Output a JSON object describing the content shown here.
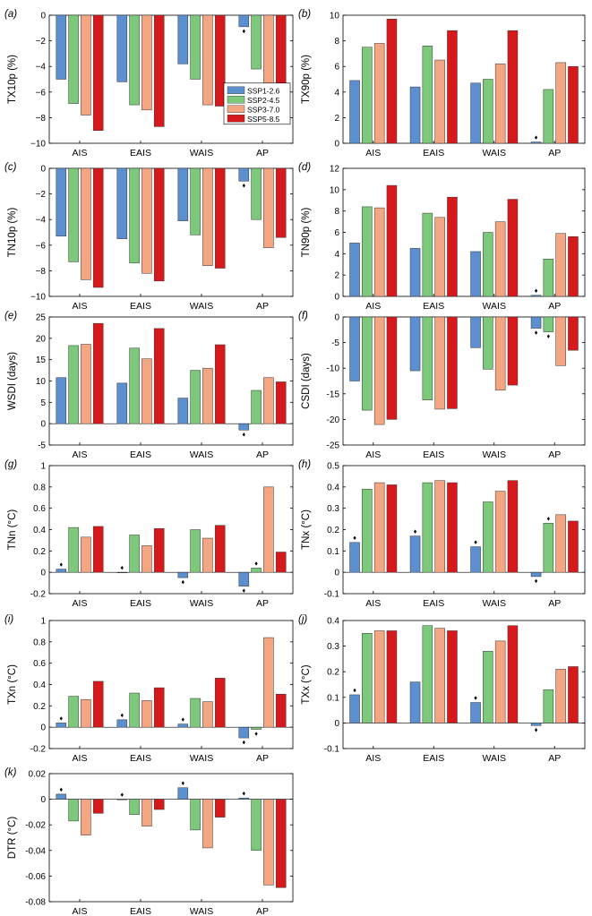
{
  "chart_data": [
    {
      "id": "a",
      "type": "bar",
      "panel_label": "(a)",
      "ylabel": "TX10p (%)",
      "ylim": [
        -10,
        0
      ],
      "yticks": [
        {
          "v": 0,
          "t": "0"
        },
        {
          "v": -2,
          "t": "−2"
        },
        {
          "v": -4,
          "t": "−4"
        },
        {
          "v": -6,
          "t": "−6"
        },
        {
          "v": -8,
          "t": "−8"
        },
        {
          "v": -10,
          "t": "−10"
        }
      ],
      "categories": [
        "AIS",
        "EAIS",
        "WAIS",
        "AP"
      ],
      "series": [
        {
          "name": "SSP1-2.6",
          "values": [
            -5.0,
            -5.2,
            -3.8,
            -0.9
          ]
        },
        {
          "name": "SSP2-4.5",
          "values": [
            -6.9,
            -7.0,
            -5.0,
            -4.2
          ]
        },
        {
          "name": "SSP3-7.0",
          "values": [
            -7.8,
            -7.4,
            -7.0,
            -6.1
          ]
        },
        {
          "name": "SSP5-8.5",
          "values": [
            -9.0,
            -8.7,
            -7.1,
            -5.6
          ]
        }
      ],
      "markers": [
        {
          "c": 3,
          "s": 0,
          "side": "below"
        }
      ],
      "legend": {
        "position": "lower-right",
        "entries": [
          "SSP1-2.6",
          "SSP2-4.5",
          "SSP3-7.0",
          "SSP5-8.5"
        ]
      }
    },
    {
      "id": "b",
      "type": "bar",
      "panel_label": "(b)",
      "ylabel": "TX90p (%)",
      "ylim": [
        0,
        10
      ],
      "yticks": [
        {
          "v": 0,
          "t": "0"
        },
        {
          "v": 2,
          "t": "2"
        },
        {
          "v": 4,
          "t": "4"
        },
        {
          "v": 6,
          "t": "6"
        },
        {
          "v": 8,
          "t": "8"
        },
        {
          "v": 10,
          "t": "10"
        }
      ],
      "categories": [
        "AIS",
        "EAIS",
        "WAIS",
        "AP"
      ],
      "series": [
        {
          "name": "SSP1-2.6",
          "values": [
            4.9,
            4.4,
            4.7,
            0.1
          ]
        },
        {
          "name": "SSP2-4.5",
          "values": [
            7.5,
            7.6,
            5.0,
            4.2
          ]
        },
        {
          "name": "SSP3-7.0",
          "values": [
            7.8,
            6.5,
            6.2,
            6.3
          ]
        },
        {
          "name": "SSP5-8.5",
          "values": [
            9.7,
            8.8,
            8.8,
            6.0
          ]
        }
      ],
      "markers": [
        {
          "c": 3,
          "s": 0,
          "side": "above"
        }
      ]
    },
    {
      "id": "c",
      "type": "bar",
      "panel_label": "(c)",
      "ylabel": "TN10p (%)",
      "ylim": [
        -10,
        0
      ],
      "yticks": [
        {
          "v": 0,
          "t": "0"
        },
        {
          "v": -2,
          "t": "−2"
        },
        {
          "v": -4,
          "t": "−4"
        },
        {
          "v": -6,
          "t": "−6"
        },
        {
          "v": -8,
          "t": "−8"
        },
        {
          "v": -10,
          "t": "−10"
        }
      ],
      "categories": [
        "AIS",
        "EAIS",
        "WAIS",
        "AP"
      ],
      "series": [
        {
          "name": "SSP1-2.6",
          "values": [
            -5.3,
            -5.5,
            -4.1,
            -1.0
          ]
        },
        {
          "name": "SSP2-4.5",
          "values": [
            -7.3,
            -7.4,
            -5.2,
            -4.0
          ]
        },
        {
          "name": "SSP3-7.0",
          "values": [
            -8.7,
            -8.2,
            -7.6,
            -6.2
          ]
        },
        {
          "name": "SSP5-8.5",
          "values": [
            -9.3,
            -8.8,
            -7.8,
            -5.4
          ]
        }
      ],
      "markers": [
        {
          "c": 3,
          "s": 0,
          "side": "below"
        }
      ]
    },
    {
      "id": "d",
      "type": "bar",
      "panel_label": "(d)",
      "ylabel": "TN90p (%)",
      "ylim": [
        0,
        12
      ],
      "yticks": [
        {
          "v": 0,
          "t": "0"
        },
        {
          "v": 2,
          "t": "2"
        },
        {
          "v": 4,
          "t": "4"
        },
        {
          "v": 6,
          "t": "6"
        },
        {
          "v": 8,
          "t": "8"
        },
        {
          "v": 10,
          "t": "10"
        },
        {
          "v": 12,
          "t": "12"
        }
      ],
      "categories": [
        "AIS",
        "EAIS",
        "WAIS",
        "AP"
      ],
      "series": [
        {
          "name": "SSP1-2.6",
          "values": [
            5.0,
            4.5,
            4.2,
            0.1
          ]
        },
        {
          "name": "SSP2-4.5",
          "values": [
            8.4,
            7.8,
            6.0,
            3.5
          ]
        },
        {
          "name": "SSP3-7.0",
          "values": [
            8.3,
            7.4,
            7.0,
            5.9
          ]
        },
        {
          "name": "SSP5-8.5",
          "values": [
            10.4,
            9.3,
            9.1,
            5.6
          ]
        }
      ],
      "markers": [
        {
          "c": 3,
          "s": 0,
          "side": "above"
        }
      ]
    },
    {
      "id": "e",
      "type": "bar",
      "panel_label": "(e)",
      "ylabel": "WSDI (days)",
      "ylim": [
        -5,
        25
      ],
      "yticks": [
        {
          "v": 25,
          "t": "25"
        },
        {
          "v": 20,
          "t": "20"
        },
        {
          "v": 15,
          "t": "15"
        },
        {
          "v": 10,
          "t": "10"
        },
        {
          "v": 5,
          "t": "5"
        },
        {
          "v": 0,
          "t": "0"
        },
        {
          "v": -5,
          "t": "-5"
        }
      ],
      "categories": [
        "AIS",
        "EAIS",
        "WAIS",
        "AP"
      ],
      "series": [
        {
          "name": "SSP1-2.6",
          "values": [
            10.8,
            9.5,
            6.0,
            -1.5
          ]
        },
        {
          "name": "SSP2-4.5",
          "values": [
            18.3,
            17.7,
            12.5,
            7.8
          ]
        },
        {
          "name": "SSP3-7.0",
          "values": [
            18.6,
            15.2,
            13.0,
            10.8
          ]
        },
        {
          "name": "SSP5-8.5",
          "values": [
            23.5,
            22.3,
            18.5,
            9.8
          ]
        }
      ],
      "markers": [
        {
          "c": 3,
          "s": 0,
          "side": "below"
        }
      ]
    },
    {
      "id": "f",
      "type": "bar",
      "panel_label": "(f)",
      "ylabel": "CSDI (days)",
      "ylim": [
        -25,
        0
      ],
      "yticks": [
        {
          "v": 0,
          "t": "0"
        },
        {
          "v": -5,
          "t": "-5"
        },
        {
          "v": -10,
          "t": "-10"
        },
        {
          "v": -15,
          "t": "-15"
        },
        {
          "v": -20,
          "t": "-20"
        },
        {
          "v": -25,
          "t": "-25"
        }
      ],
      "categories": [
        "AIS",
        "EAIS",
        "WAIS",
        "AP"
      ],
      "series": [
        {
          "name": "SSP1-2.6",
          "values": [
            -12.5,
            -10.5,
            -6.0,
            -2.2
          ]
        },
        {
          "name": "SSP2-4.5",
          "values": [
            -18.2,
            -16.2,
            -10.2,
            -2.9
          ]
        },
        {
          "name": "SSP3-7.0",
          "values": [
            -21.0,
            -18.0,
            -14.3,
            -9.5
          ]
        },
        {
          "name": "SSP5-8.5",
          "values": [
            -20.0,
            -17.9,
            -13.3,
            -6.5
          ]
        }
      ],
      "markers": [
        {
          "c": 3,
          "s": 0,
          "side": "below"
        },
        {
          "c": 3,
          "s": 1,
          "side": "below"
        }
      ]
    },
    {
      "id": "g",
      "type": "bar",
      "panel_label": "(g)",
      "ylabel": "TNn (°C)",
      "ylim": [
        -0.2,
        1
      ],
      "yticks": [
        {
          "v": 1,
          "t": "1"
        },
        {
          "v": 0.8,
          "t": "0.8"
        },
        {
          "v": 0.6,
          "t": "0.6"
        },
        {
          "v": 0.4,
          "t": "0.4"
        },
        {
          "v": 0.2,
          "t": "0.2"
        },
        {
          "v": 0,
          "t": "0"
        },
        {
          "v": -0.2,
          "t": "-0.2"
        }
      ],
      "categories": [
        "AIS",
        "EAIS",
        "WAIS",
        "AP"
      ],
      "series": [
        {
          "name": "SSP1-2.6",
          "values": [
            0.03,
            0.0,
            -0.05,
            -0.13
          ]
        },
        {
          "name": "SSP2-4.5",
          "values": [
            0.42,
            0.35,
            0.4,
            0.04
          ]
        },
        {
          "name": "SSP3-7.0",
          "values": [
            0.33,
            0.25,
            0.32,
            0.8
          ]
        },
        {
          "name": "SSP5-8.5",
          "values": [
            0.43,
            0.41,
            0.44,
            0.19
          ]
        }
      ],
      "markers": [
        {
          "c": 0,
          "s": 0,
          "side": "above"
        },
        {
          "c": 1,
          "s": 0,
          "side": "above"
        },
        {
          "c": 2,
          "s": 0,
          "side": "below"
        },
        {
          "c": 3,
          "s": 0,
          "side": "below"
        },
        {
          "c": 3,
          "s": 1,
          "side": "above"
        }
      ]
    },
    {
      "id": "h",
      "type": "bar",
      "panel_label": "(h)",
      "ylabel": "TNx (°C)",
      "ylim": [
        -0.1,
        0.5
      ],
      "yticks": [
        {
          "v": 0.5,
          "t": "0.5"
        },
        {
          "v": 0.4,
          "t": "0.4"
        },
        {
          "v": 0.3,
          "t": "0.3"
        },
        {
          "v": 0.2,
          "t": "0.2"
        },
        {
          "v": 0.1,
          "t": "0.1"
        },
        {
          "v": 0,
          "t": "0"
        },
        {
          "v": -0.1,
          "t": "-0.1"
        }
      ],
      "categories": [
        "AIS",
        "EAIS",
        "WAIS",
        "AP"
      ],
      "series": [
        {
          "name": "SSP1-2.6",
          "values": [
            0.14,
            0.17,
            0.12,
            -0.02
          ]
        },
        {
          "name": "SSP2-4.5",
          "values": [
            0.39,
            0.42,
            0.33,
            0.23
          ]
        },
        {
          "name": "SSP3-7.0",
          "values": [
            0.42,
            0.43,
            0.38,
            0.27
          ]
        },
        {
          "name": "SSP5-8.5",
          "values": [
            0.41,
            0.42,
            0.43,
            0.24
          ]
        }
      ],
      "markers": [
        {
          "c": 0,
          "s": 0,
          "side": "above"
        },
        {
          "c": 1,
          "s": 0,
          "side": "above"
        },
        {
          "c": 2,
          "s": 0,
          "side": "above"
        },
        {
          "c": 3,
          "s": 0,
          "side": "below"
        },
        {
          "c": 3,
          "s": 1,
          "side": "above"
        }
      ]
    },
    {
      "id": "i",
      "type": "bar",
      "panel_label": "(i)",
      "ylabel": "TXn (°C)",
      "ylim": [
        -0.2,
        1
      ],
      "yticks": [
        {
          "v": 1,
          "t": "1"
        },
        {
          "v": 0.8,
          "t": "0.8"
        },
        {
          "v": 0.6,
          "t": "0.6"
        },
        {
          "v": 0.4,
          "t": "0.4"
        },
        {
          "v": 0.2,
          "t": "0.2"
        },
        {
          "v": 0,
          "t": "0"
        },
        {
          "v": -0.2,
          "t": "-0.2"
        }
      ],
      "categories": [
        "AIS",
        "EAIS",
        "WAIS",
        "AP"
      ],
      "series": [
        {
          "name": "SSP1-2.6",
          "values": [
            0.04,
            0.07,
            0.03,
            -0.1
          ]
        },
        {
          "name": "SSP2-4.5",
          "values": [
            0.29,
            0.32,
            0.27,
            -0.02
          ]
        },
        {
          "name": "SSP3-7.0",
          "values": [
            0.26,
            0.25,
            0.24,
            0.84
          ]
        },
        {
          "name": "SSP5-8.5",
          "values": [
            0.43,
            0.37,
            0.46,
            0.31
          ]
        }
      ],
      "markers": [
        {
          "c": 0,
          "s": 0,
          "side": "above"
        },
        {
          "c": 1,
          "s": 0,
          "side": "above"
        },
        {
          "c": 2,
          "s": 0,
          "side": "above"
        },
        {
          "c": 3,
          "s": 0,
          "side": "below"
        },
        {
          "c": 3,
          "s": 1,
          "side": "below"
        }
      ]
    },
    {
      "id": "j",
      "type": "bar",
      "panel_label": "(j)",
      "ylabel": "TXx (°C)",
      "ylim": [
        -0.1,
        0.4
      ],
      "yticks": [
        {
          "v": 0.4,
          "t": "0.4"
        },
        {
          "v": 0.3,
          "t": "0.3"
        },
        {
          "v": 0.2,
          "t": "0.2"
        },
        {
          "v": 0.1,
          "t": "0.1"
        },
        {
          "v": 0,
          "t": "0"
        },
        {
          "v": -0.1,
          "t": "-0.1"
        }
      ],
      "categories": [
        "AIS",
        "EAIS",
        "WAIS",
        "AP"
      ],
      "series": [
        {
          "name": "SSP1-2.6",
          "values": [
            0.11,
            0.16,
            0.08,
            -0.01
          ]
        },
        {
          "name": "SSP2-4.5",
          "values": [
            0.35,
            0.38,
            0.28,
            0.13
          ]
        },
        {
          "name": "SSP3-7.0",
          "values": [
            0.36,
            0.37,
            0.32,
            0.21
          ]
        },
        {
          "name": "SSP5-8.5",
          "values": [
            0.36,
            0.36,
            0.38,
            0.22
          ]
        }
      ],
      "markers": [
        {
          "c": 0,
          "s": 0,
          "side": "above"
        },
        {
          "c": 2,
          "s": 0,
          "side": "above"
        },
        {
          "c": 3,
          "s": 0,
          "side": "below"
        }
      ]
    },
    {
      "id": "k",
      "type": "bar",
      "panel_label": "(k)",
      "ylabel": "DTR (°C)",
      "ylim": [
        -0.08,
        0.02
      ],
      "yticks": [
        {
          "v": 0.02,
          "t": "0.02"
        },
        {
          "v": 0,
          "t": "0"
        },
        {
          "v": -0.02,
          "t": "-0.02"
        },
        {
          "v": -0.04,
          "t": "-0.04"
        },
        {
          "v": -0.06,
          "t": "-0.06"
        },
        {
          "v": -0.08,
          "t": "-0.08"
        }
      ],
      "categories": [
        "AIS",
        "EAIS",
        "WAIS",
        "AP"
      ],
      "series": [
        {
          "name": "SSP1-2.6",
          "values": [
            0.004,
            0.0,
            0.009,
            0.001
          ]
        },
        {
          "name": "SSP2-4.5",
          "values": [
            -0.017,
            -0.012,
            -0.024,
            -0.04
          ]
        },
        {
          "name": "SSP3-7.0",
          "values": [
            -0.028,
            -0.021,
            -0.038,
            -0.067
          ]
        },
        {
          "name": "SSP5-8.5",
          "values": [
            -0.011,
            -0.008,
            -0.014,
            -0.069
          ]
        }
      ],
      "markers": [
        {
          "c": 0,
          "s": 0,
          "side": "above"
        },
        {
          "c": 1,
          "s": 0,
          "side": "above"
        },
        {
          "c": 2,
          "s": 0,
          "side": "above"
        },
        {
          "c": 3,
          "s": 0,
          "side": "above"
        }
      ]
    }
  ],
  "colors": {
    "series": [
      "#5b8fd0",
      "#7cc97c",
      "#f4a582",
      "#d7191c"
    ],
    "axes": "#000000",
    "text": "#000000",
    "marker": "#000000"
  },
  "markers_style": "diamond"
}
